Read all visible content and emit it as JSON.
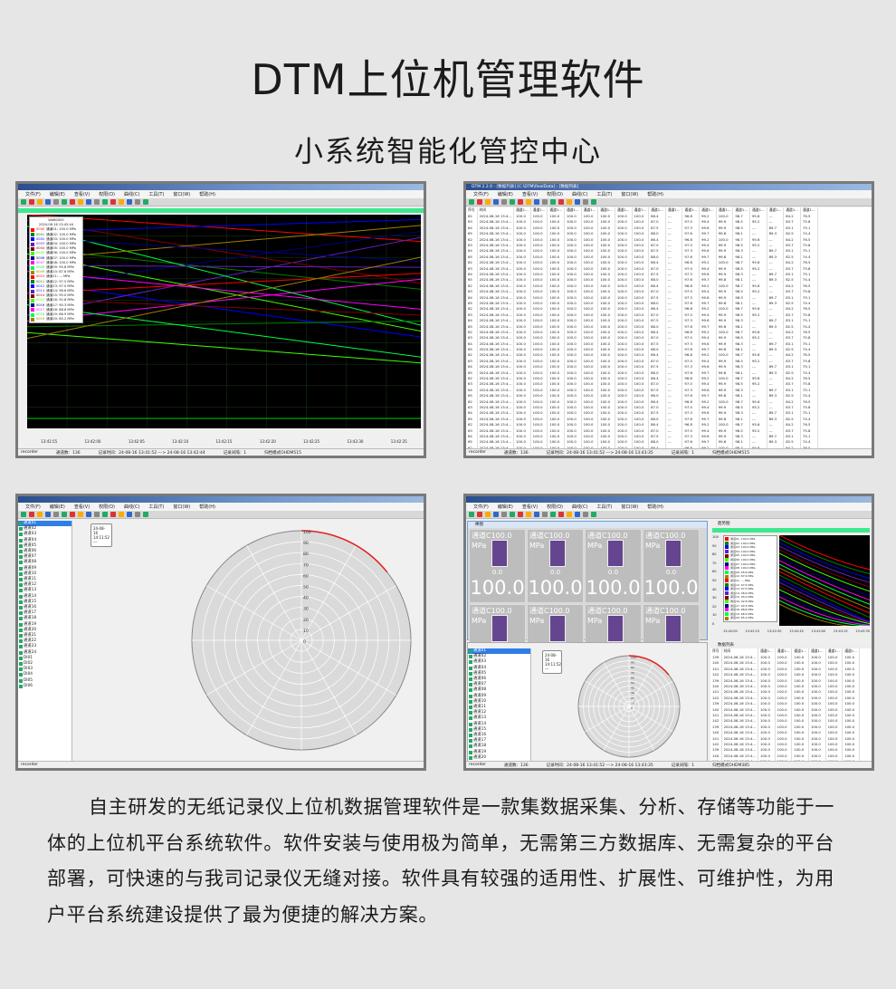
{
  "header": {
    "title": "DTM上位机管理软件",
    "subtitle": "小系统智能化管控中心"
  },
  "app": {
    "window_title": "DTM 2.2.0 - [数据列表] [C:\\DTM\\RealData] - [数据列表]",
    "menu": [
      "文件(F)",
      "编辑(E)",
      "查看(V)",
      "权限(O)",
      "曲线(C)",
      "工具(T)",
      "窗口(W)",
      "帮助(H)"
    ]
  },
  "curve_view": {
    "legend_title": "WAB0000",
    "legend_time": "2024-08-16 13:42:44",
    "legend_items": [
      {
        "id": "0000",
        "label": "通道01: 100.0 MPa",
        "color": "#ff0000"
      },
      {
        "id": "0001",
        "label": "通道02: 100.0 MPa",
        "color": "#008000"
      },
      {
        "id": "0002",
        "label": "通道03: 100.0 MPa",
        "color": "#0000ff"
      },
      {
        "id": "0003",
        "label": "通道04: 100.0 MPa",
        "color": "#6020c0"
      },
      {
        "id": "0004",
        "label": "通道05: 100.0 MPa",
        "color": "#800000"
      },
      {
        "id": "0005",
        "label": "通道06: 100.0 MPa",
        "color": "#40ff00"
      },
      {
        "id": "0006",
        "label": "通道07: 100.0 MPa",
        "color": "#000080"
      },
      {
        "id": "0007",
        "label": "通道08: 100.0 MPa",
        "color": "#ff00ff"
      },
      {
        "id": "0008",
        "label": "通道09: 95.8 MPa",
        "color": "#00ff40"
      },
      {
        "id": "0009",
        "label": "通道10: 87.6 MPa",
        "color": "#a08000"
      },
      {
        "id": "0010",
        "label": "通道11: -.- MPa",
        "color": "#ff0000"
      },
      {
        "id": "0011",
        "label": "通道12: 97.5 MPa",
        "color": "#008000"
      },
      {
        "id": "0012",
        "label": "通道13: 97.0 MPa",
        "color": "#0000ff"
      },
      {
        "id": "0013",
        "label": "通道14: 96.6 MPa",
        "color": "#6020c0"
      },
      {
        "id": "0014",
        "label": "通道15: 95.0 MPa",
        "color": "#800000"
      },
      {
        "id": "0015",
        "label": "通道16: 92.8 MPa",
        "color": "#40ff00"
      },
      {
        "id": "0016",
        "label": "通道17: 90.3 MPa",
        "color": "#000080"
      },
      {
        "id": "0017",
        "label": "通道18: 88.8 MPa",
        "color": "#ff00ff"
      },
      {
        "id": "0018",
        "label": "通道19: 86.9 MPa",
        "color": "#00ff40"
      },
      {
        "id": "0019",
        "label": "通道20: 85.2 MPa",
        "color": "#a08000"
      }
    ],
    "x_ticks": [
      "13:41:55",
      "13:42:00",
      "13:42:05",
      "13:42:10",
      "13:42:15",
      "13:42:20",
      "13:42:25",
      "13:42:30",
      "13:42:35"
    ],
    "status": [
      "recorder",
      "通道数：136",
      "记录时间：24-08-16 13:41:52 ---> 24-08-16 13:42:44",
      "记录间隔：1",
      "归档模式OHDM515"
    ]
  },
  "table_view": {
    "columns": [
      "序号",
      "时间",
      "通道1...",
      "通道1...",
      "通道1...",
      "通道1...",
      "通道1...",
      "通道1...",
      "通道1...",
      "通道1...",
      "通道1...",
      "通道1...",
      "通道1...",
      "通道1...",
      "通道1...",
      "通道1...",
      "通道1...",
      "通道1...",
      "通道1...",
      "通道1..."
    ],
    "rows": [
      [
        "62",
        "2024-08-16 13:4...",
        "100.0",
        "100.0",
        "100.0",
        "100.0",
        "100.0",
        "100.0",
        "100.0",
        "100.0",
        "86.4",
        "-.-",
        "96.8",
        "99.2",
        "100.0",
        "98.7",
        "95.6",
        "-.-",
        "84.2",
        "76.5"
      ],
      [
        "63",
        "2024-08-16 13:4...",
        "100.0",
        "100.0",
        "100.0",
        "100.0",
        "100.0",
        "100.0",
        "100.0",
        "100.0",
        "87.0",
        "-.-",
        "97.0",
        "99.4",
        "99.9",
        "98.5",
        "95.2",
        "-.-",
        "83.7",
        "75.8"
      ],
      [
        "64",
        "2024-08-16 13:4...",
        "100.0",
        "100.0",
        "100.0",
        "100.0",
        "100.0",
        "100.0",
        "100.0",
        "100.0",
        "87.5",
        "-.-",
        "97.3",
        "99.6",
        "99.9",
        "98.3",
        "-.-",
        "89.7",
        "83.1",
        "75.1"
      ],
      [
        "65",
        "2024-08-16 13:4...",
        "100.0",
        "100.0",
        "100.0",
        "100.0",
        "100.0",
        "100.0",
        "100.0",
        "100.0",
        "88.0",
        "-.-",
        "97.6",
        "99.7",
        "99.8",
        "98.1",
        "-.-",
        "89.3",
        "82.5",
        "74.4"
      ]
    ],
    "status": [
      "recorder",
      "通道数：136",
      "记录时间：24-08-16 13:41:52 ---> 24-08-16 13:43:35",
      "记录间隔：1",
      "归档模式OHDM515"
    ]
  },
  "polar_view": {
    "channels": [
      "通道01",
      "通道02",
      "通道03",
      "通道04",
      "通道05",
      "通道06",
      "通道07",
      "通道08",
      "通道09",
      "通道10",
      "通道11",
      "通道12",
      "通道13",
      "通道14",
      "通道15",
      "通道16",
      "通道17",
      "通道18",
      "通道19",
      "通道20",
      "通道21",
      "通道22",
      "通道23",
      "通道24",
      "DI01",
      "DI02",
      "DI03",
      "DI04",
      "DI05",
      "DI06"
    ],
    "note": [
      "24-08-16",
      "14:11:52",
      "---"
    ],
    "radial_ticks": [
      "100",
      "90",
      "80",
      "70",
      "60",
      "50",
      "40",
      "30",
      "20",
      "10",
      "0"
    ],
    "status": [
      "recorder"
    ]
  },
  "dashboard_view": {
    "gauge_panel_title": "棒图",
    "curve_panel_title": "趋势图",
    "table_panel_title": "数据列表",
    "gauges": [
      {
        "name": "通道C100.0",
        "unit": "MPa",
        "min": "0.0",
        "value": "100.0",
        "level": 1.0
      },
      {
        "name": "通道C100.0",
        "unit": "MPa",
        "min": "0.0",
        "value": "100.0",
        "level": 1.0
      },
      {
        "name": "通道C100.0",
        "unit": "MPa",
        "min": "0.0",
        "value": "100.0",
        "level": 1.0
      },
      {
        "name": "通道C100.0",
        "unit": "MPa",
        "min": "0.0",
        "value": "100.0",
        "level": 1.0
      },
      {
        "name": "通道C100.0",
        "unit": "MPa",
        "min": "0.0",
        "value": "100.0",
        "level": 1.0
      },
      {
        "name": "通道C100.0",
        "unit": "MPa",
        "min": "0.0",
        "value": "100.0",
        "level": 1.0
      },
      {
        "name": "通道C100.0",
        "unit": "MPa",
        "min": "0.0",
        "value": "100.0",
        "level": 1.0
      },
      {
        "name": "通道C100.0",
        "unit": "MPa",
        "min": "0.0",
        "value": "100.0",
        "level": 1.0
      }
    ],
    "curve_y_ticks": [
      "100",
      "90",
      "80",
      "70",
      "60",
      "50",
      "40",
      "30",
      "20",
      "10",
      "0"
    ],
    "curve_x_ticks": [
      "13:42:00",
      "13:42:15",
      "13:42:30",
      "13:42:45",
      "13:43:00",
      "13:43:15",
      "13:43:30"
    ],
    "table_rows": [
      [
        "139",
        "2024-08-16 13:4...",
        "100.0",
        "100.0",
        "100.0",
        "100.0",
        "100.0",
        "100.0"
      ],
      [
        "140",
        "2024-08-16 13:4...",
        "100.0",
        "100.0",
        "100.0",
        "100.0",
        "100.0",
        "100.0"
      ],
      [
        "141",
        "2024-08-16 13:4...",
        "100.0",
        "100.0",
        "100.0",
        "100.0",
        "100.0",
        "100.0"
      ],
      [
        "142",
        "2024-08-16 13:4...",
        "100.0",
        "100.0",
        "100.0",
        "100.0",
        "100.0",
        "100.0"
      ]
    ],
    "status": [
      "recorder",
      "通道数：136",
      "记录时间：24-08-16 13:41:52 ---> 24-08-16 13:43:35",
      "记录间隔：1",
      "归档模式OHDM385"
    ]
  },
  "description": "自主研发的无纸记录仪上位机数据管理软件是一款集数据采集、分析、存储等功能于一体的上位机平台系统软件。软件安装与使用极为简单，无需第三方数据库、无需复杂的平台部署，可快速的与我司记录仪无缝对接。软件具有较强的适用性、扩展性、可维护性，为用户平台系统建设提供了最为便捷的解决方案。"
}
